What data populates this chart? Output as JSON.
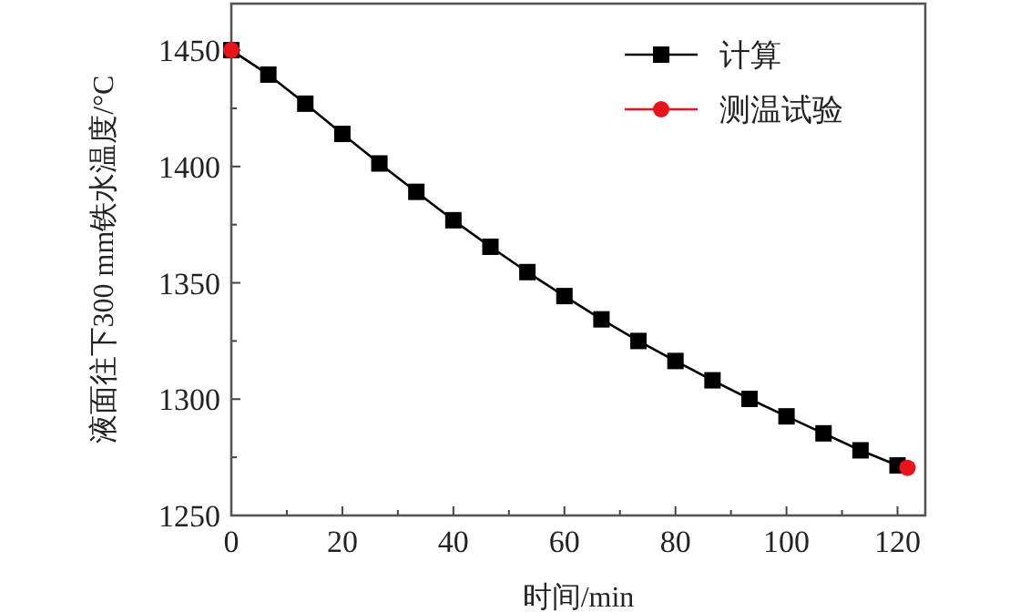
{
  "chart_data": {
    "type": "line",
    "xlabel": "时间/min",
    "ylabel": "液面往下300 mm铁水温度/°C",
    "series": [
      {
        "name": "计算",
        "color": "#000000",
        "marker": "square",
        "x": [
          0,
          6.67,
          13.33,
          20,
          26.67,
          33.33,
          40,
          46.67,
          53.33,
          60,
          66.67,
          73.33,
          80,
          86.67,
          93.33,
          100,
          106.67,
          113.33,
          120
        ],
        "values": [
          1450,
          1439.5,
          1427,
          1414,
          1401.3,
          1389.1,
          1376.9,
          1365.5,
          1354.6,
          1344.3,
          1334.3,
          1325,
          1316.4,
          1308.1,
          1300.1,
          1292.6,
          1285.3,
          1278,
          1271.5
        ]
      },
      {
        "name": "测温试验",
        "color": "#e8141c",
        "type": "scatter",
        "marker": "circle",
        "x": [
          0,
          121.8
        ],
        "values": [
          1450,
          1270.5
        ]
      }
    ],
    "xlim": [
      0,
      125
    ],
    "ylim": [
      1250,
      1470
    ],
    "xticks": [
      0,
      {
        "value": 10,
        "label": null
      },
      20,
      {
        "value": 30,
        "label": null
      },
      40,
      {
        "value": 50,
        "label": null
      },
      60,
      {
        "value": 70,
        "label": null
      },
      80,
      {
        "value": 90,
        "label": null
      },
      100,
      {
        "value": 110,
        "label": null
      },
      120
    ],
    "yticks": [
      1250,
      {
        "value": 1275,
        "label": null
      },
      1300,
      {
        "value": 1325,
        "label": null
      },
      1350,
      {
        "value": 1375,
        "label": null
      },
      1400,
      {
        "value": 1425,
        "label": null
      },
      1450
    ],
    "grid": false,
    "legend": "top right"
  }
}
